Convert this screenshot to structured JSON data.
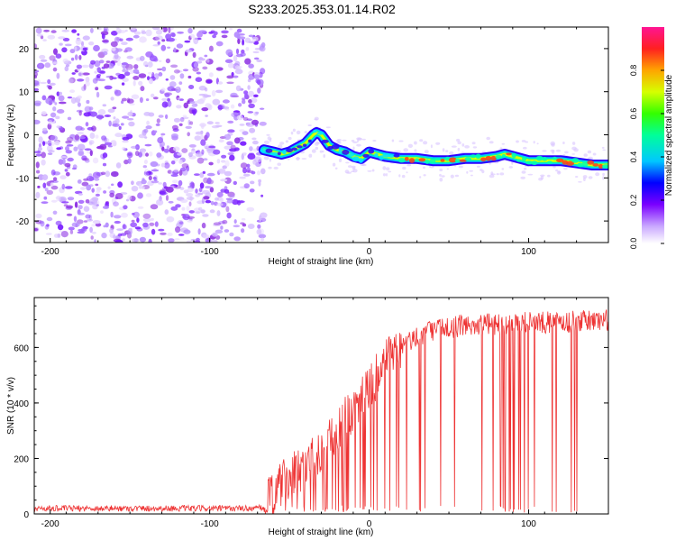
{
  "title": "S233.2025.353.01.14.R02",
  "chart_data": [
    {
      "type": "heatmap",
      "name": "spectrogram",
      "xlabel": "Height of straight line (km)",
      "ylabel": "Frequency (Hz)",
      "xlim": [
        -210,
        150
      ],
      "ylim": [
        -25,
        25
      ],
      "xticks": [
        -200,
        -100,
        0,
        100
      ],
      "yticks": [
        -20,
        -10,
        0,
        10,
        20
      ],
      "noise_region_x": [
        -210,
        -66
      ],
      "signal_track": {
        "x": [
          -66,
          -60,
          -55,
          -50,
          -45,
          -40,
          -35,
          -33,
          -30,
          -25,
          -20,
          -15,
          -10,
          -5,
          0,
          5,
          10,
          20,
          30,
          40,
          50,
          60,
          70,
          80,
          85,
          90,
          95,
          100,
          110,
          120,
          130,
          140,
          150
        ],
        "freq_hz": [
          -3.5,
          -4.0,
          -4.5,
          -4.0,
          -3.0,
          -2.0,
          0.0,
          0.5,
          0.0,
          -2.5,
          -3.5,
          -4.0,
          -5.0,
          -5.5,
          -4.0,
          -4.5,
          -5.0,
          -5.5,
          -5.5,
          -6.0,
          -6.0,
          -5.5,
          -5.5,
          -5.0,
          -4.5,
          -5.0,
          -5.5,
          -6.0,
          -6.0,
          -6.0,
          -6.5,
          -7.0,
          -7.0
        ]
      },
      "colorbar": {
        "label": "Normalized spectral amplitude",
        "range": [
          0.0,
          1.0
        ],
        "ticks": [
          0.0,
          0.2,
          0.4,
          0.6,
          0.8
        ],
        "tick_labels": [
          "0.0",
          "0.2",
          "0.4",
          "0.6",
          "0.8"
        ]
      }
    },
    {
      "type": "line",
      "name": "snr",
      "xlabel": "Height of straight line (km)",
      "ylabel": "SNR (10 * v/v)",
      "xlim": [
        -210,
        150
      ],
      "ylim": [
        0,
        780
      ],
      "xticks": [
        -200,
        -100,
        0,
        100
      ],
      "yticks": [
        0,
        200,
        400,
        600
      ],
      "series": [
        {
          "name": "SNR",
          "color": "#ee3333",
          "trend_x": [
            -210,
            -70,
            -65,
            -60,
            -50,
            -40,
            -30,
            -20,
            -10,
            0,
            10,
            20,
            30,
            40,
            60,
            80,
            100,
            120,
            150
          ],
          "trend_y": [
            20,
            20,
            25,
            80,
            130,
            180,
            230,
            300,
            380,
            460,
            540,
            600,
            640,
            665,
            680,
            685,
            690,
            690,
            700
          ]
        }
      ]
    }
  ],
  "colors": {
    "axis": "#000000",
    "noise": "#8a2be2",
    "snr_line": "#ee3333"
  }
}
